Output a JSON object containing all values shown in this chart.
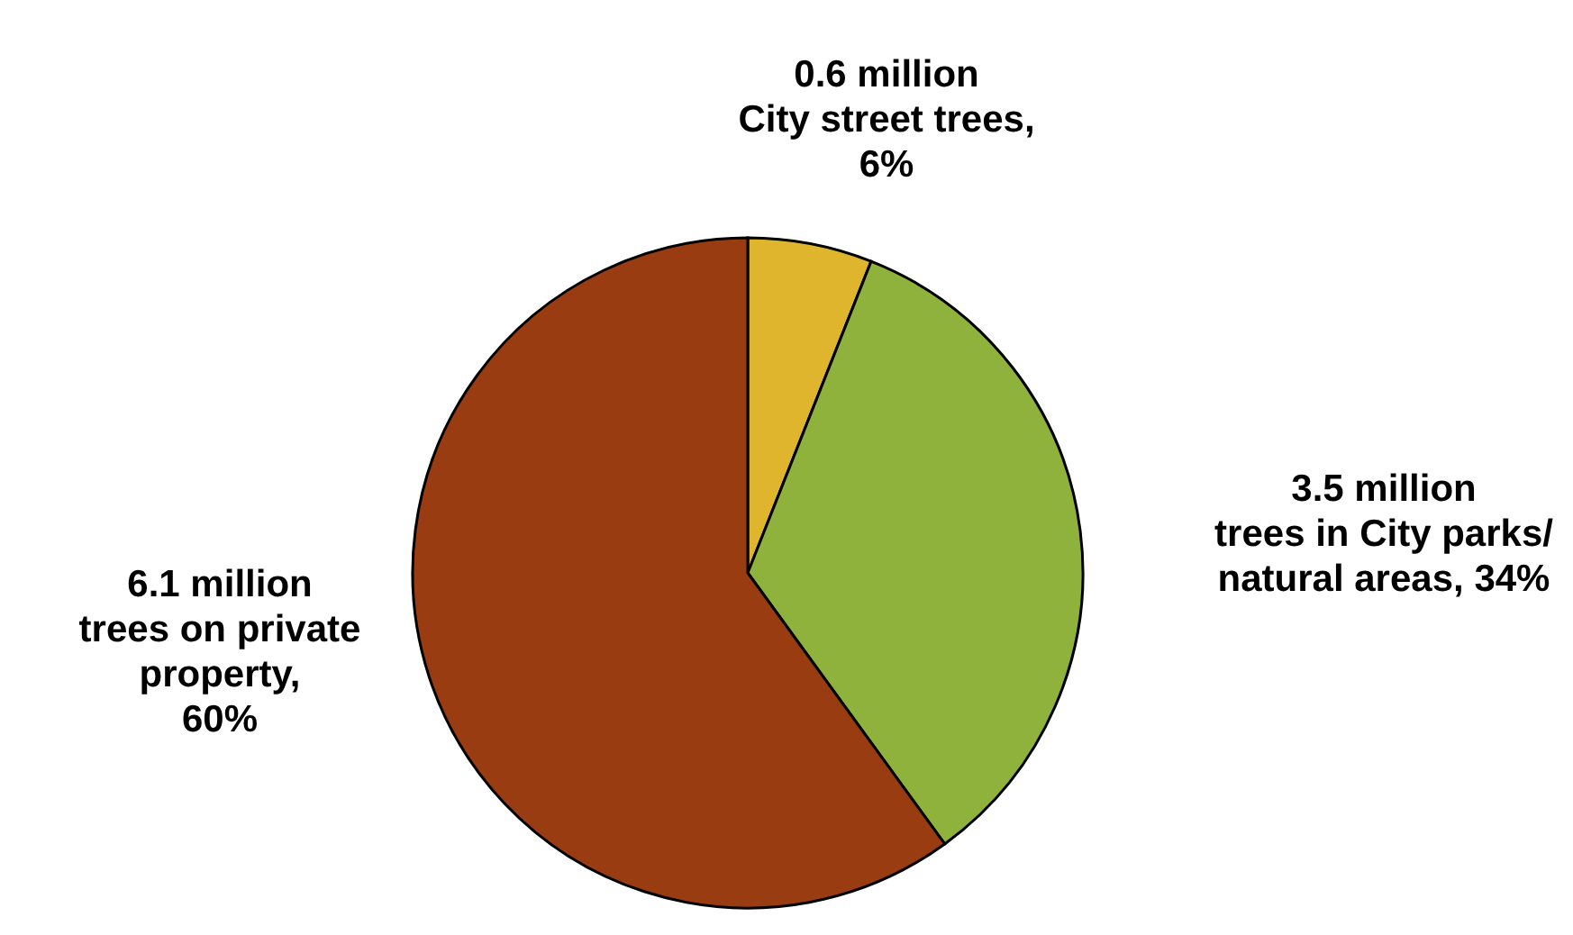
{
  "chart_data": {
    "type": "pie",
    "categories": [
      "0.6 million\nCity street trees,\n6%",
      "3.5 million\ntrees in City parks/\nnatural areas, 34%",
      "6.1 million\ntrees on private\nproperty,\n60%"
    ],
    "values": [
      6,
      34,
      60
    ],
    "colors": [
      "#e0b52e",
      "#8fb23c",
      "#9a3c12"
    ]
  }
}
